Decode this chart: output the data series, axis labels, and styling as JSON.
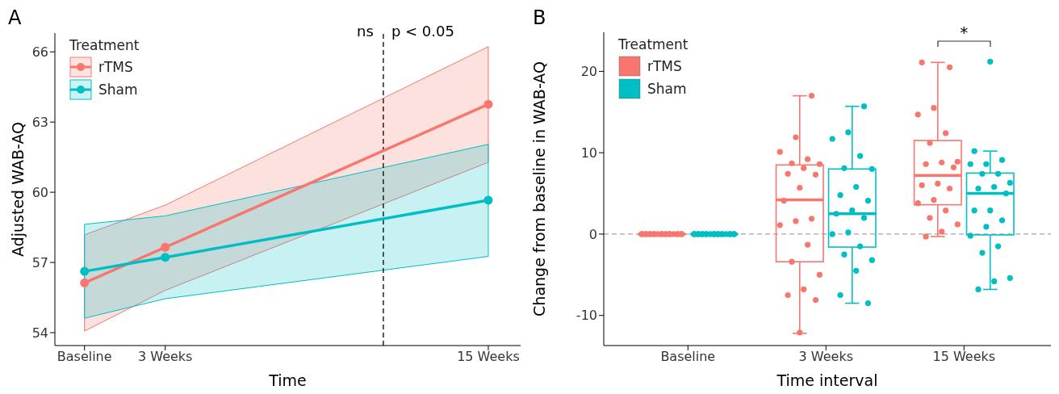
{
  "chart_data": [
    {
      "type": "line",
      "title": "A",
      "xlabel": "Time",
      "ylabel": "Adjusted WAB-AQ",
      "legend_title": "Treatment",
      "legend": "top left",
      "marker": "circle",
      "line_style": "solid",
      "x": [
        0,
        3,
        15
      ],
      "xlim": [
        -1.1,
        16.2
      ],
      "xticks": [
        {
          "value": 0,
          "label": "Baseline"
        },
        {
          "value": 3,
          "label": "3 Weeks"
        },
        {
          "value": 15,
          "label": "15 Weeks"
        }
      ],
      "ylim": [
        53.45,
        66.8
      ],
      "yticks": [
        54,
        57,
        60,
        63,
        66
      ],
      "series": [
        {
          "name": "rTMS",
          "color": "#f8766d",
          "values": [
            56.13,
            57.65,
            63.76
          ],
          "lower": [
            54.07,
            55.81,
            61.28
          ],
          "upper": [
            58.18,
            59.45,
            66.22
          ]
        },
        {
          "name": "Sham",
          "color": "#00bfc4",
          "values": [
            56.62,
            57.22,
            59.66
          ],
          "lower": [
            54.62,
            55.45,
            57.26
          ],
          "upper": [
            58.63,
            58.99,
            62.05
          ]
        }
      ],
      "ref_lines": [
        {
          "axis": "x",
          "value": 11.1,
          "color": "#000000",
          "line_style": "dashed"
        }
      ],
      "annotations": [
        "ns",
        "p < 0.05"
      ]
    },
    {
      "type": "box",
      "title": "B",
      "xlabel": "Time interval",
      "ylabel": "Change from baseline in WAB-AQ",
      "legend_title": "Treatment",
      "legend": "top left",
      "categories": [
        "Baseline",
        "3 Weeks",
        "15 Weeks"
      ],
      "ylim": [
        -13.7,
        24.8
      ],
      "yticks": [
        -10,
        0,
        10,
        20
      ],
      "series": [
        {
          "name": "rTMS",
          "color": "#f8766d",
          "boxes": [
            {
              "low": 0,
              "q1": 0,
              "median": 0,
              "q3": 0,
              "high": 0
            },
            {
              "low": -12.2,
              "q1": -3.4,
              "median": 4.2,
              "q3": 8.5,
              "high": 17.0
            },
            {
              "low": -0.3,
              "q1": 3.6,
              "median": 7.2,
              "q3": 11.5,
              "high": 21.1
            }
          ]
        },
        {
          "name": "Sham",
          "color": "#00bfc4",
          "boxes": [
            {
              "low": 0,
              "q1": 0,
              "median": 0,
              "q3": 0,
              "high": 0
            },
            {
              "low": -8.5,
              "q1": -1.6,
              "median": 2.5,
              "q3": 8.0,
              "high": 15.7
            },
            {
              "low": -6.8,
              "q1": -0.1,
              "median": 5.0,
              "q3": 7.5,
              "high": 10.2
            }
          ]
        },
        {
          "type": "scatter",
          "color": "#f8766d",
          "x": [
            "Baseline",
            "Baseline",
            "Baseline",
            "Baseline",
            "Baseline",
            "Baseline",
            "Baseline",
            "Baseline",
            "Baseline",
            "Baseline",
            "Baseline",
            "Baseline",
            "Baseline",
            "Baseline",
            "Baseline",
            "Baseline",
            "Baseline",
            "Baseline",
            "Baseline",
            "Baseline",
            "3 Weeks",
            "3 Weeks",
            "3 Weeks",
            "3 Weeks",
            "3 Weeks",
            "3 Weeks",
            "3 Weeks",
            "3 Weeks",
            "3 Weeks",
            "3 Weeks",
            "3 Weeks",
            "3 Weeks",
            "3 Weeks",
            "3 Weeks",
            "3 Weeks",
            "3 Weeks",
            "3 Weeks",
            "3 Weeks",
            "3 Weeks",
            "3 Weeks",
            "3 Weeks",
            "15 Weeks",
            "15 Weeks",
            "15 Weeks",
            "15 Weeks",
            "15 Weeks",
            "15 Weeks",
            "15 Weeks",
            "15 Weeks",
            "15 Weeks",
            "15 Weeks",
            "15 Weeks",
            "15 Weeks",
            "15 Weeks",
            "15 Weeks",
            "15 Weeks",
            "15 Weeks",
            "15 Weeks",
            "15 Weeks",
            "15 Weeks",
            "15 Weeks"
          ],
          "values": [
            0,
            0,
            0,
            0,
            0,
            0,
            0,
            0,
            0,
            0,
            0,
            0,
            0,
            0,
            0,
            0,
            0,
            0,
            0,
            0,
            17.0,
            11.9,
            10.1,
            9.2,
            8.7,
            8.6,
            8.1,
            7.4,
            7.3,
            5.7,
            4.1,
            1.9,
            1.6,
            1.1,
            -1.3,
            -3.4,
            -5.0,
            -6.8,
            -7.5,
            -8.1,
            -12.1,
            21.1,
            20.5,
            15.5,
            14.7,
            12.4,
            11.2,
            8.9,
            8.8,
            8.6,
            8.2,
            6.2,
            6.0,
            5.6,
            4.2,
            3.8,
            2.9,
            2.0,
            1.2,
            0.3,
            -0.3
          ]
        },
        {
          "type": "scatter",
          "color": "#00bfc4",
          "x": [
            "Baseline",
            "Baseline",
            "Baseline",
            "Baseline",
            "Baseline",
            "Baseline",
            "Baseline",
            "Baseline",
            "Baseline",
            "Baseline",
            "Baseline",
            "Baseline",
            "Baseline",
            "Baseline",
            "Baseline",
            "Baseline",
            "Baseline",
            "Baseline",
            "Baseline",
            "Baseline",
            "3 Weeks",
            "3 Weeks",
            "3 Weeks",
            "3 Weeks",
            "3 Weeks",
            "3 Weeks",
            "3 Weeks",
            "3 Weeks",
            "3 Weeks",
            "3 Weeks",
            "3 Weeks",
            "3 Weeks",
            "3 Weeks",
            "3 Weeks",
            "3 Weeks",
            "3 Weeks",
            "3 Weeks",
            "3 Weeks",
            "3 Weeks",
            "3 Weeks",
            "15 Weeks",
            "15 Weeks",
            "15 Weeks",
            "15 Weeks",
            "15 Weeks",
            "15 Weeks",
            "15 Weeks",
            "15 Weeks",
            "15 Weeks",
            "15 Weeks",
            "15 Weeks",
            "15 Weeks",
            "15 Weeks",
            "15 Weeks",
            "15 Weeks",
            "15 Weeks",
            "15 Weeks",
            "15 Weeks",
            "15 Weeks",
            "15 Weeks",
            "15 Weeks"
          ],
          "values": [
            0,
            0,
            0,
            0,
            0,
            0,
            0,
            0,
            0,
            0,
            0,
            0,
            0,
            0,
            0,
            0,
            0,
            0,
            0,
            0,
            15.7,
            12.5,
            11.7,
            9.6,
            8.1,
            8.0,
            5.8,
            4.8,
            4.1,
            2.9,
            2.5,
            2.0,
            0.2,
            0.0,
            -1.5,
            -2.5,
            -3.2,
            -4.5,
            -7.5,
            -8.5,
            21.2,
            10.2,
            9.1,
            8.6,
            8.6,
            7.4,
            7.4,
            6.3,
            5.8,
            5.6,
            5.0,
            2.9,
            2.9,
            1.7,
            0.9,
            -0.2,
            -1.5,
            -2.3,
            -5.4,
            -5.8,
            -6.8
          ]
        }
      ],
      "ref_lines": [
        {
          "axis": "y",
          "value": 0,
          "color": "#a6a6a6",
          "line_style": "dashed"
        }
      ],
      "annotations": [
        "*"
      ]
    }
  ]
}
